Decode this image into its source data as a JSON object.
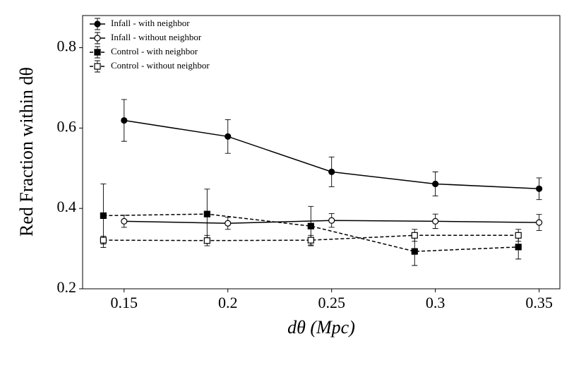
{
  "chart_data": {
    "type": "line",
    "xlabel": "dθ (Mpc)",
    "ylabel": "Red Fraction within dθ",
    "xlim": [
      0.13,
      0.36
    ],
    "xticks": [
      0.15,
      0.2,
      0.25,
      0.3,
      0.35
    ],
    "ylim": [
      0.2,
      0.88
    ],
    "yticks": [
      0.2,
      0.4,
      0.6,
      0.8
    ],
    "legend": "upper-left",
    "series": [
      {
        "name": "Infall - with neighbor",
        "color": "#000000",
        "marker": "circle",
        "filled": true,
        "dash": false,
        "x": [
          0.15,
          0.2,
          0.25,
          0.3,
          0.35
        ],
        "values": [
          0.619,
          0.579,
          0.491,
          0.461,
          0.449
        ],
        "errors": [
          0.052,
          0.042,
          0.037,
          0.03,
          0.027
        ]
      },
      {
        "name": "Infall - without neighbor",
        "color": "#000000",
        "marker": "circle",
        "filled": false,
        "dash": false,
        "x": [
          0.15,
          0.2,
          0.25,
          0.3,
          0.35
        ],
        "values": [
          0.368,
          0.363,
          0.37,
          0.368,
          0.365
        ],
        "errors": [
          0.015,
          0.015,
          0.017,
          0.018,
          0.02
        ]
      },
      {
        "name": "Control - with neighbor",
        "color": "#000000",
        "marker": "square",
        "filled": true,
        "dash": true,
        "x": [
          0.14,
          0.19,
          0.24,
          0.29,
          0.34
        ],
        "values": [
          0.382,
          0.386,
          0.356,
          0.293,
          0.304
        ],
        "errors": [
          0.079,
          0.062,
          0.049,
          0.035,
          0.03
        ]
      },
      {
        "name": "Control - without neighbor",
        "color": "#000000",
        "marker": "square",
        "filled": false,
        "dash": true,
        "x": [
          0.14,
          0.19,
          0.24,
          0.29,
          0.34
        ],
        "values": [
          0.321,
          0.32,
          0.321,
          0.333,
          0.333
        ],
        "errors": [
          0.01,
          0.013,
          0.012,
          0.015,
          0.015
        ]
      }
    ]
  }
}
